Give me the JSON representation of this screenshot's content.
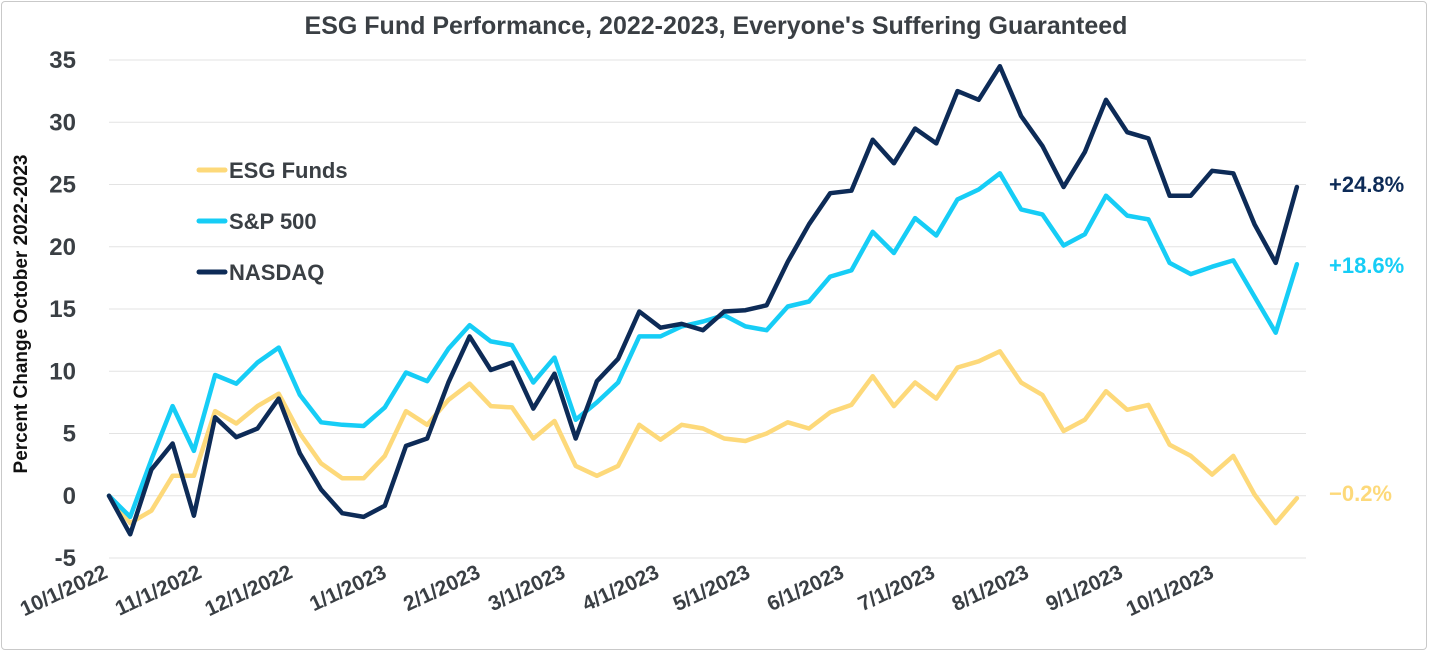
{
  "chart_data": {
    "type": "line",
    "title": "ESG Fund Performance, 2022-2023, Everyone's Suffering Guaranteed",
    "ylabel": "Percent Change October 2022-2023",
    "xlabel": "",
    "ylim": [
      -5,
      35
    ],
    "yticks": [
      -5,
      0,
      5,
      10,
      15,
      20,
      25,
      30,
      35
    ],
    "xlim": [
      "2022-10-01",
      "2023-10-31"
    ],
    "xticks": [
      {
        "date": "2022-10-01",
        "label": "10/1/2022"
      },
      {
        "date": "2022-11-01",
        "label": "11/1/2022"
      },
      {
        "date": "2022-12-01",
        "label": "12/1/2022"
      },
      {
        "date": "2023-01-01",
        "label": "1/1/2023"
      },
      {
        "date": "2023-02-01",
        "label": "2/1/2023"
      },
      {
        "date": "2023-03-01",
        "label": "3/1/2023"
      },
      {
        "date": "2023-04-01",
        "label": "4/1/2023"
      },
      {
        "date": "2023-05-01",
        "label": "5/1/2023"
      },
      {
        "date": "2023-06-01",
        "label": "6/1/2023"
      },
      {
        "date": "2023-07-01",
        "label": "7/1/2023"
      },
      {
        "date": "2023-08-01",
        "label": "8/1/2023"
      },
      {
        "date": "2023-09-01",
        "label": "9/1/2023"
      },
      {
        "date": "2023-10-01",
        "label": "10/1/2023"
      }
    ],
    "grid": true,
    "legend_position": "upper-left",
    "x": [
      "2022-10-01",
      "2022-10-08",
      "2022-10-15",
      "2022-10-22",
      "2022-10-29",
      "2022-11-05",
      "2022-11-12",
      "2022-11-19",
      "2022-11-26",
      "2022-12-03",
      "2022-12-10",
      "2022-12-17",
      "2022-12-24",
      "2022-12-31",
      "2023-01-07",
      "2023-01-14",
      "2023-01-21",
      "2023-01-28",
      "2023-02-04",
      "2023-02-11",
      "2023-02-18",
      "2023-02-25",
      "2023-03-04",
      "2023-03-11",
      "2023-03-18",
      "2023-03-25",
      "2023-04-01",
      "2023-04-08",
      "2023-04-15",
      "2023-04-22",
      "2023-04-29",
      "2023-05-06",
      "2023-05-13",
      "2023-05-20",
      "2023-05-27",
      "2023-06-03",
      "2023-06-10",
      "2023-06-17",
      "2023-06-24",
      "2023-07-01",
      "2023-07-08",
      "2023-07-15",
      "2023-07-22",
      "2023-07-29",
      "2023-08-05",
      "2023-08-12",
      "2023-08-19",
      "2023-08-26",
      "2023-09-02",
      "2023-09-09",
      "2023-09-16",
      "2023-09-23",
      "2023-09-30",
      "2023-10-07",
      "2023-10-14",
      "2023-10-21",
      "2023-10-28"
    ],
    "series": [
      {
        "name": "ESG Funds",
        "color": "#fdd97a",
        "end_label": "−0.2%",
        "values": [
          0,
          -2.2,
          -1.2,
          1.6,
          1.6,
          6.8,
          5.8,
          7.2,
          8.2,
          5.0,
          2.6,
          1.4,
          1.4,
          3.2,
          6.8,
          5.7,
          7.7,
          9.0,
          7.2,
          7.1,
          4.6,
          6.0,
          2.4,
          1.6,
          2.4,
          5.7,
          4.5,
          5.7,
          5.4,
          4.6,
          4.4,
          5.0,
          5.9,
          5.4,
          6.7,
          7.3,
          9.6,
          7.2,
          9.1,
          7.8,
          10.3,
          10.8,
          11.6,
          9.1,
          8.1,
          5.2,
          6.1,
          8.4,
          6.9,
          7.3,
          4.1,
          3.2,
          1.7,
          3.2,
          0.1,
          -2.2,
          -0.2
        ]
      },
      {
        "name": "S&P 500",
        "color": "#16cdf6",
        "end_label": "+18.6%",
        "values": [
          0,
          -1.7,
          2.9,
          7.2,
          3.6,
          9.7,
          9.0,
          10.7,
          11.9,
          8.1,
          5.9,
          5.7,
          5.6,
          7.1,
          9.9,
          9.2,
          11.8,
          13.7,
          12.4,
          12.1,
          9.1,
          11.1,
          6.1,
          7.5,
          9.1,
          12.8,
          12.8,
          13.6,
          14.0,
          14.5,
          13.6,
          13.3,
          15.2,
          15.6,
          17.6,
          18.1,
          21.2,
          19.5,
          22.3,
          20.9,
          23.8,
          24.6,
          25.9,
          23.0,
          22.6,
          20.1,
          21.0,
          24.1,
          22.5,
          22.2,
          18.7,
          17.8,
          18.4,
          18.9,
          16.0,
          13.1,
          18.6
        ]
      },
      {
        "name": "NASDAQ",
        "color": "#0d2b57",
        "end_label": "+24.8%",
        "values": [
          0,
          -3.1,
          2.1,
          4.2,
          -1.6,
          6.3,
          4.7,
          5.4,
          7.8,
          3.4,
          0.5,
          -1.4,
          -1.7,
          -0.8,
          4.0,
          4.6,
          9.1,
          12.8,
          10.1,
          10.7,
          7.0,
          9.8,
          4.6,
          9.2,
          11.0,
          14.8,
          13.5,
          13.8,
          13.3,
          14.8,
          14.9,
          15.3,
          18.8,
          21.8,
          24.3,
          24.5,
          28.6,
          26.7,
          29.5,
          28.3,
          32.5,
          31.8,
          34.5,
          30.5,
          28.1,
          24.8,
          27.6,
          31.8,
          29.2,
          28.7,
          24.1,
          24.1,
          26.1,
          25.9,
          21.8,
          18.7,
          24.8
        ]
      }
    ]
  }
}
